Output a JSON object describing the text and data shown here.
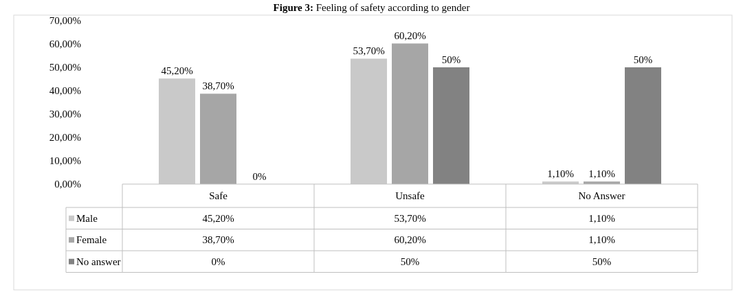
{
  "chart_data": {
    "type": "bar",
    "title": "Figure 3: Feeling of safety according to gender",
    "categories": [
      "Safe",
      "Unsafe",
      "No Answer"
    ],
    "series": [
      {
        "name": "Male",
        "color": "#c9c9c9",
        "values": [
          45.2,
          53.7,
          1.1
        ],
        "value_labels": [
          "45,20%",
          "53,70%",
          "1,10%"
        ]
      },
      {
        "name": "Female",
        "color": "#a6a6a6",
        "values": [
          38.7,
          60.2,
          1.1
        ],
        "value_labels": [
          "38,70%",
          "60,20%",
          "1,10%"
        ]
      },
      {
        "name": "No answer",
        "color": "#828282",
        "values": [
          0,
          50,
          50
        ],
        "value_labels": [
          "0%",
          "50%",
          "50%"
        ]
      }
    ],
    "ylim": [
      0,
      70
    ],
    "yticks": [
      {
        "value": 0,
        "label": "0,00%"
      },
      {
        "value": 10,
        "label": "10,00%"
      },
      {
        "value": 20,
        "label": "20,00%"
      },
      {
        "value": 30,
        "label": "30,00%"
      },
      {
        "value": 40,
        "label": "40,00%"
      },
      {
        "value": 50,
        "label": "50,00%"
      },
      {
        "value": 60,
        "label": "60,00%"
      },
      {
        "value": 70,
        "label": "70,00%"
      }
    ],
    "legend": "bottom"
  }
}
